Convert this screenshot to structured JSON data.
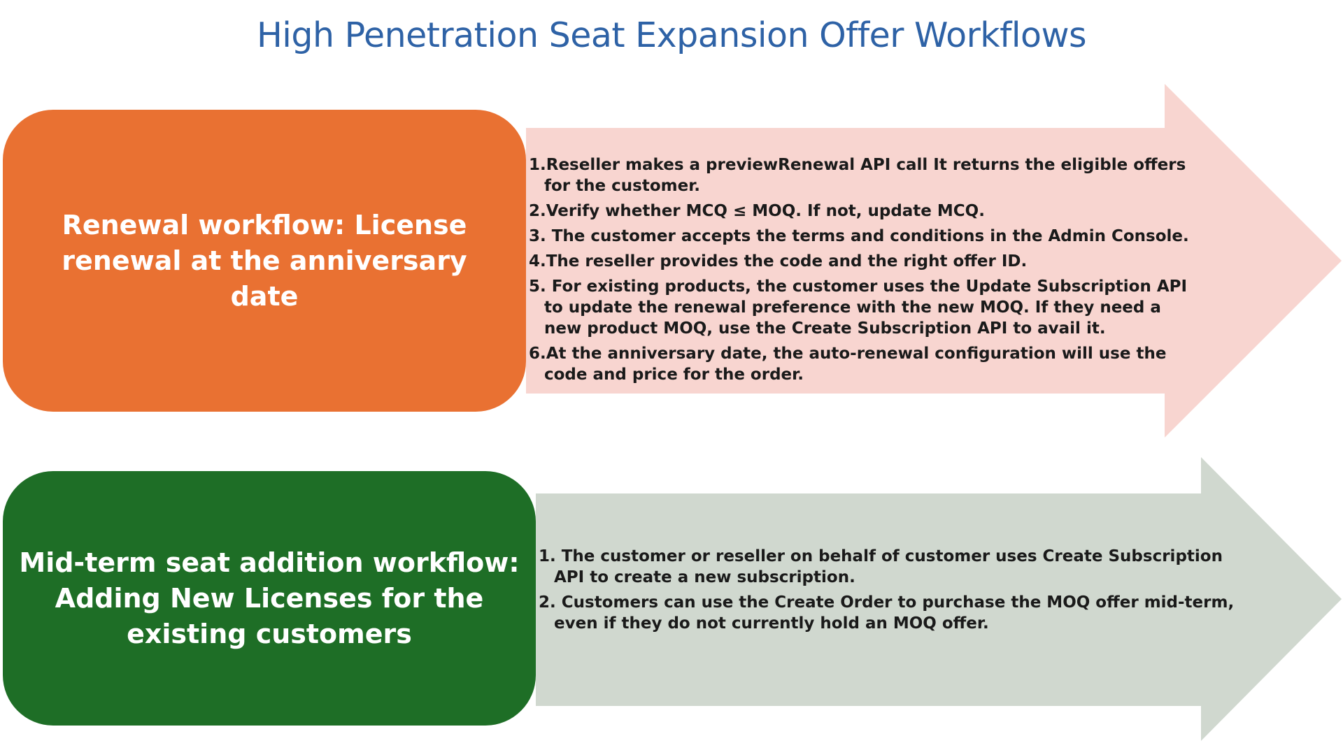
{
  "title": "High Penetration Seat Expansion Offer Workflows",
  "colors": {
    "title": "#2e62a6",
    "renewal_box": "#e97132",
    "renewal_arrow": "#f8d5d0",
    "midterm_box": "#1e6e26",
    "midterm_arrow": "#d0d8cf"
  },
  "renewal": {
    "label": "Renewal workflow: License renewal at the anniversary date",
    "steps": [
      "1.Reseller makes a previewRenewal API call It returns the eligible offers for the customer.",
      "2.Verify whether MCQ ≤ MOQ. If not, update MCQ.",
      "3. The customer accepts the terms and conditions in the Admin Console.",
      "4.The reseller provides the code and the right offer ID.",
      "5. For existing products, the customer uses the Update Subscription API to update the renewal preference with the new MOQ. If they need a new product MOQ, use the Create Subscription API to avail it.",
      "6.At the anniversary date, the auto-renewal configuration will use the code and price for the order."
    ]
  },
  "midterm": {
    "label": "Mid-term seat addition workflow: Adding New Licenses for the existing customers",
    "steps": [
      "1. The customer or reseller on behalf of customer uses Create Subscription API to create a new subscription.",
      "2. Customers can use the Create Order to purchase the MOQ offer mid-term, even if they do not currently hold an MOQ offer."
    ]
  }
}
